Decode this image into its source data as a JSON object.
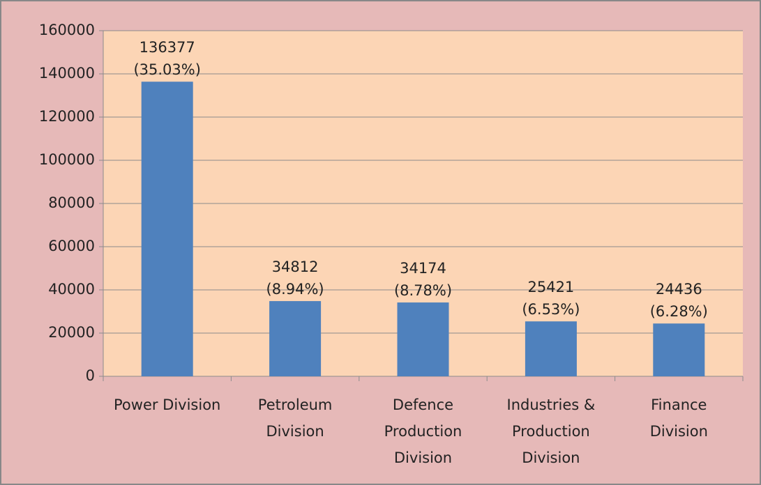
{
  "chart_data": {
    "type": "bar",
    "categories": [
      "Power Division",
      "Petroleum Division",
      "Defence Production Division",
      "Industries & Production Division",
      "Finance Division"
    ],
    "values": [
      136377,
      34812,
      34174,
      25421,
      24436
    ],
    "value_labels": [
      [
        "136377",
        "(35.03%)"
      ],
      [
        "34812",
        "(8.94%)"
      ],
      [
        "34174",
        "(8.78%)"
      ],
      [
        "25421",
        "(6.53%)"
      ],
      [
        "24436",
        "(6.28%)"
      ]
    ],
    "color": "#4f81bd",
    "ylim": [
      0,
      160000
    ],
    "yticks": [
      0,
      20000,
      40000,
      60000,
      80000,
      100000,
      120000,
      140000,
      160000
    ],
    "grid": true
  }
}
